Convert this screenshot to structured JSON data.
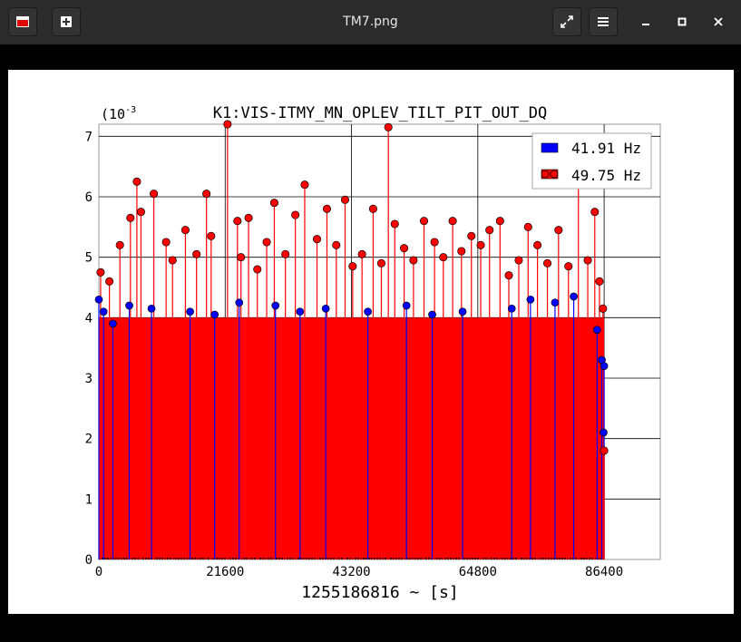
{
  "window": {
    "title": "TM7.png",
    "icons": [
      "app-icon",
      "new-tab-icon",
      "fullscreen-icon",
      "menu-icon",
      "minimize-icon",
      "maximize-icon",
      "close-icon"
    ]
  },
  "chart_data": {
    "type": "scatter",
    "title": "K1:VIS-ITMY_MN_OPLEV_TILT_PIT_OUT_DQ",
    "xlabel": "1255186816 ~ [s]",
    "ylabel": "",
    "y_scale_label": "(10",
    "y_scale_exp": "-3",
    "xlim": [
      0,
      96000
    ],
    "ylim": [
      0,
      7.2
    ],
    "x_ticks": [
      0,
      21600,
      43200,
      64800,
      86400
    ],
    "x_tick_labels": [
      "0",
      "21600",
      "43200",
      "64800",
      "86400"
    ],
    "y_ticks": [
      0,
      1,
      2,
      3,
      4,
      5,
      6,
      7
    ],
    "y_tick_labels": [
      "0",
      "1",
      "2",
      "3",
      "4",
      "5",
      "6",
      "7"
    ],
    "grid": true,
    "legend_position": "top-right",
    "style": "stem",
    "series": [
      {
        "name": "41.91 Hz",
        "color": "#0000ff",
        "points_x": [
          0,
          800,
          2400,
          5200,
          9000,
          15600,
          19800,
          24000,
          30200,
          34400,
          38800,
          46000,
          52600,
          57000,
          62200,
          70600,
          73800,
          78000,
          81200,
          85200,
          86000,
          86300,
          86400
        ],
        "points_y": [
          4.3,
          4.1,
          3.9,
          4.2,
          4.15,
          4.1,
          4.05,
          4.25,
          4.2,
          4.1,
          4.15,
          4.1,
          4.2,
          4.05,
          4.1,
          4.15,
          4.3,
          4.25,
          4.35,
          3.8,
          3.3,
          2.1,
          3.2
        ]
      },
      {
        "name": "49.75 Hz",
        "color": "#ff0000",
        "points_x": [
          300,
          1800,
          3600,
          5400,
          6500,
          7200,
          9400,
          11500,
          12600,
          14800,
          16700,
          18400,
          19200,
          22000,
          23700,
          24300,
          25600,
          27100,
          28700,
          30000,
          31900,
          33600,
          35200,
          37300,
          39000,
          40600,
          42100,
          43400,
          45000,
          46900,
          48300,
          49500,
          50600,
          52200,
          53800,
          55600,
          57400,
          58900,
          60500,
          62000,
          63700,
          65300,
          66800,
          68600,
          70100,
          71800,
          73400,
          75000,
          76700,
          78600,
          80300,
          82000,
          83600,
          84800,
          85600,
          86200,
          86400
        ],
        "points_y": [
          4.75,
          4.6,
          5.2,
          5.65,
          6.25,
          5.75,
          6.05,
          5.25,
          4.95,
          5.45,
          5.05,
          6.05,
          5.35,
          7.2,
          5.6,
          5.0,
          5.65,
          4.8,
          5.25,
          5.9,
          5.05,
          5.7,
          6.2,
          5.3,
          5.8,
          5.2,
          5.95,
          4.85,
          5.05,
          5.8,
          4.9,
          7.15,
          5.55,
          5.15,
          4.95,
          5.6,
          5.25,
          5.0,
          5.6,
          5.1,
          5.35,
          5.2,
          5.45,
          5.6,
          4.7,
          4.95,
          5.5,
          5.2,
          4.9,
          5.45,
          4.85,
          6.2,
          4.95,
          5.75,
          4.6,
          4.15,
          1.8
        ]
      }
    ]
  }
}
